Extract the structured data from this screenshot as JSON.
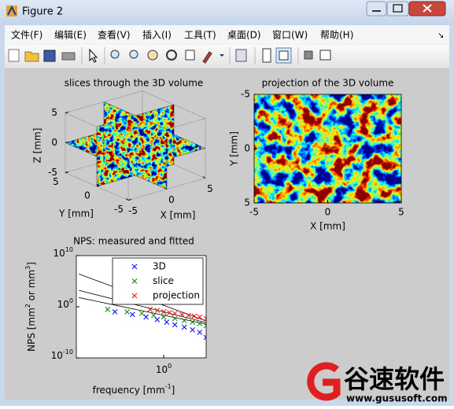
{
  "window": {
    "title": "Figure 2"
  },
  "menu": [
    "文件(F)",
    "编辑(E)",
    "查看(V)",
    "插入(I)",
    "工具(T)",
    "桌面(D)",
    "窗口(W)",
    "帮助(H)"
  ],
  "chart_data": [
    {
      "type": "slice3d",
      "title": "slices through the 3D volume",
      "xlabel": "X [mm]",
      "ylabel": "Y [mm]",
      "zlabel": "Z [mm]",
      "xlim": [
        -5,
        5
      ],
      "ylim": [
        -5,
        5
      ],
      "zlim": [
        -5,
        5
      ],
      "xticks": [
        -5,
        0,
        5
      ],
      "yticks": [
        -5,
        0,
        5
      ],
      "zticks": [
        -5,
        0,
        5
      ],
      "colormap": "jet"
    },
    {
      "type": "image",
      "title": "projection of the 3D volume",
      "xlabel": "X [mm]",
      "ylabel": "Y [mm]",
      "xlim": [
        -5,
        5
      ],
      "ylim": [
        -5,
        5
      ],
      "ydir": "reverse",
      "xticks": [
        -5,
        0,
        5
      ],
      "yticks": [
        -5,
        0,
        5
      ],
      "colormap": "jet"
    },
    {
      "type": "scatter",
      "title": "NPS: measured and fitted",
      "xlabel": "frequency [mm^{-1}]",
      "ylabel": "NPS [mm^{2} or mm^{3}]",
      "xscale": "log",
      "yscale": "log",
      "xlim": [
        0.24,
        2
      ],
      "ylim": [
        1e-10,
        10000000000.0
      ],
      "xticks": [
        {
          "value": 1,
          "label": "10^{0}"
        }
      ],
      "yticks": [
        {
          "value": 1e-10,
          "label": "10^{-10}"
        },
        {
          "value": 1,
          "label": "10^{0}"
        },
        {
          "value": 10000000000.0,
          "label": "10^{10}"
        }
      ],
      "legend": "northeast",
      "series": [
        {
          "name": "3D",
          "color": "#0000ff",
          "marker": "x",
          "x": [
            0.45,
            0.6,
            0.75,
            0.9,
            1.05,
            1.2,
            1.4,
            1.6,
            1.8,
            2.0
          ],
          "values": [
            0.1,
            0.03,
            0.01,
            0.003,
            0.001,
            0.0003,
            0.0001,
            3e-05,
            1e-05,
            1e-06
          ]
        },
        {
          "name": "slice",
          "color": "#008000",
          "marker": "x",
          "x": [
            0.4,
            0.55,
            0.7,
            0.85,
            1.0,
            1.2,
            1.4,
            1.6,
            1.8,
            2.0
          ],
          "values": [
            0.3,
            0.1,
            0.05,
            0.02,
            0.01,
            0.005,
            0.002,
            0.001,
            0.0005,
            0.0002
          ]
        },
        {
          "name": "projection",
          "color": "#ff0000",
          "marker": "x",
          "x": [
            0.8,
            0.9,
            1.0,
            1.1,
            1.2,
            1.35,
            1.5,
            1.65,
            1.8,
            2.0
          ],
          "values": [
            0.3,
            0.2,
            0.1,
            0.07,
            0.05,
            0.03,
            0.02,
            0.015,
            0.01,
            0.005
          ]
        }
      ],
      "fits": [
        {
          "color": "#000000",
          "x": [
            0.25,
            2
          ],
          "values": [
            2500000,
            0.0016
          ]
        },
        {
          "color": "#000000",
          "x": [
            0.25,
            2
          ],
          "values": [
            1600,
            0.0008
          ]
        },
        {
          "color": "#000000",
          "x": [
            0.25,
            2
          ],
          "values": [
            63,
            0.0004
          ]
        }
      ]
    }
  ],
  "watermark": {
    "name": "谷速软件",
    "url": "www.gususoft.com"
  }
}
